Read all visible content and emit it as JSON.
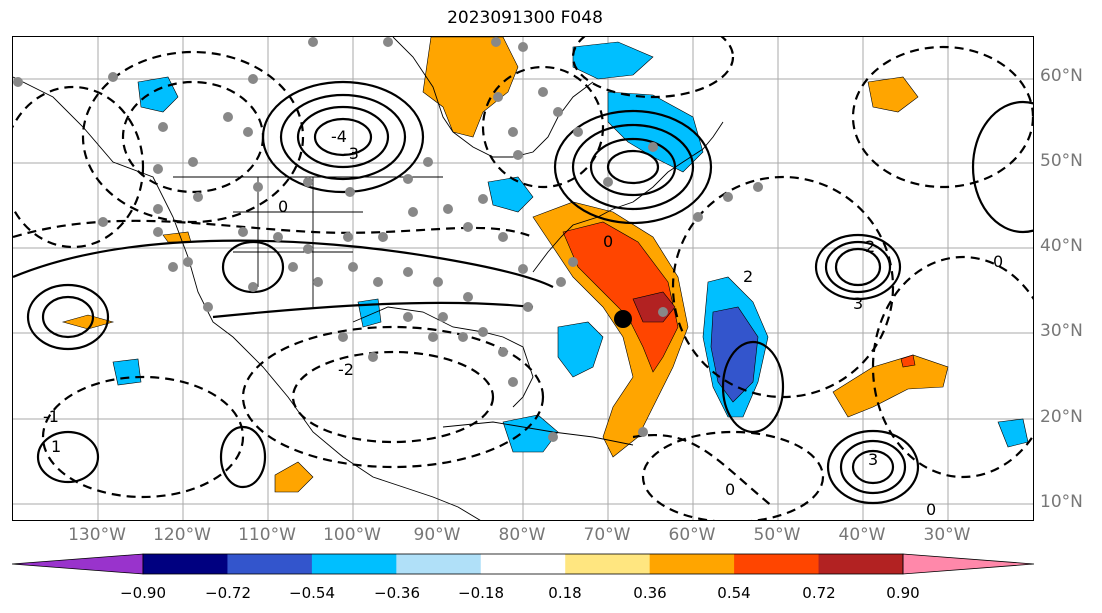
{
  "title": "2023091300 F048",
  "latitude_labels": [
    "60°N",
    "50°N",
    "40°N",
    "30°N",
    "20°N",
    "10°N"
  ],
  "longitude_labels": [
    "130°W",
    "120°W",
    "110°W",
    "100°W",
    "90°W",
    "80°W",
    "70°W",
    "60°W",
    "50°W",
    "40°W",
    "30°W"
  ],
  "colorbar": {
    "ticks": [
      "−0.90",
      "−0.72",
      "−0.54",
      "−0.36",
      "−0.18",
      "0.18",
      "0.36",
      "0.54",
      "0.72",
      "0.90"
    ],
    "colors": [
      "#9933cc",
      "#000080",
      "#3355cc",
      "#00bfff",
      "#b0e0f8",
      "#ffffff",
      "#ffe680",
      "#ffa500",
      "#ff4500",
      "#b22222",
      "#ff88aa"
    ],
    "extend": "both"
  },
  "contour_labels": [
    "-4",
    "-3",
    "-2",
    "-1",
    "0",
    "1",
    "2",
    "3"
  ],
  "colors": {
    "orange": "#ffa500",
    "red_orange": "#ff4500",
    "dark_red": "#b22222",
    "sky_blue": "#00bfff",
    "royal_blue": "#3355cc",
    "station_gray": "#888888"
  },
  "storm_marker": "black-dot"
}
